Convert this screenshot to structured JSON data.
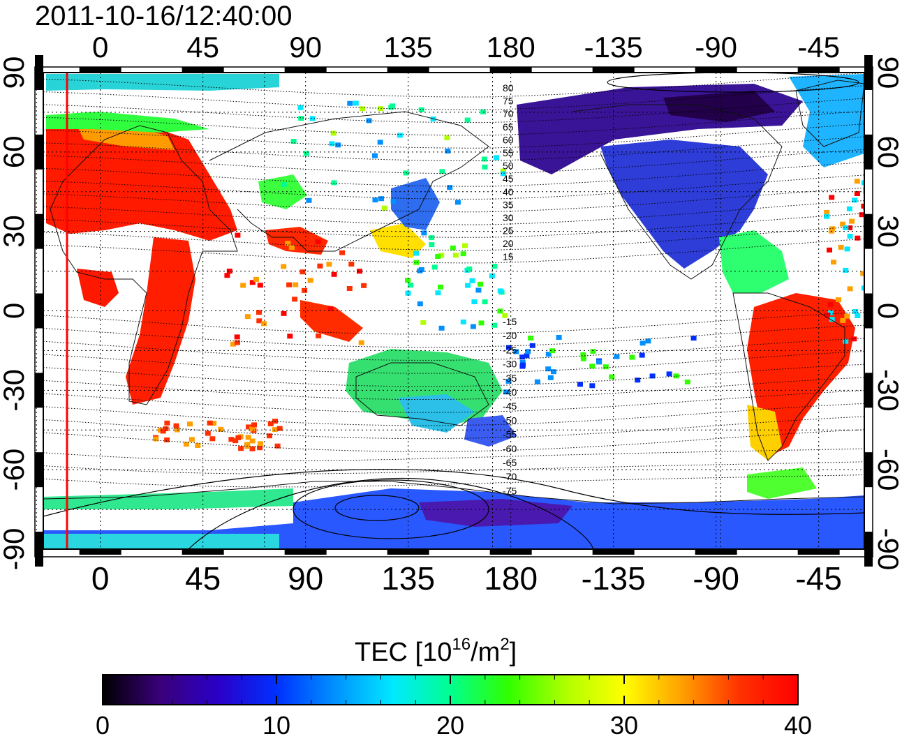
{
  "timestamp": "2011-10-16/12:40:00",
  "lon_ticks": [
    "0",
    "45",
    "90",
    "135",
    "180",
    "-135",
    "-90",
    "-45"
  ],
  "lat_ticks": [
    "90",
    "60",
    "30",
    "0",
    "-30",
    "-60",
    "-90"
  ],
  "contour_labels_north": [
    "80",
    "75",
    "70",
    "65",
    "60",
    "55",
    "50",
    "45",
    "40",
    "35",
    "30",
    "25",
    "20",
    "15"
  ],
  "contour_labels_south": [
    "-15",
    "-20",
    "-25",
    "-30",
    "-35",
    "-40",
    "-45",
    "-50",
    "-55",
    "-60",
    "-65",
    "-70",
    "-75"
  ],
  "colorbar": {
    "title_main": "TEC  [10",
    "title_sup1": "16",
    "title_mid": "/m",
    "title_sup2": "2",
    "title_end": "]",
    "tick_labels": [
      "0",
      "10",
      "20",
      "30",
      "40"
    ],
    "min": 0,
    "max": 40,
    "colors": [
      "#000000",
      "#3a007a",
      "#2a00c8",
      "#0030ff",
      "#0090ff",
      "#00e8ff",
      "#00ff90",
      "#30ff00",
      "#b0ff00",
      "#ffff00",
      "#ffa000",
      "#ff3000",
      "#ff0000"
    ]
  },
  "map": {
    "lon_range": [
      -25,
      335
    ],
    "lat_range": [
      -90,
      90
    ],
    "grid": true,
    "tec_regions": [
      {
        "name": "europe-africa-high",
        "color": "#ff1a00"
      },
      {
        "name": "south-america-high",
        "color": "#ff2000"
      },
      {
        "name": "north-america-low",
        "color": "#2e3dd8"
      },
      {
        "name": "arctic-low",
        "color": "#3b0f8a"
      },
      {
        "name": "australia-mid",
        "color": "#30e060"
      },
      {
        "name": "antarctic-low",
        "color": "#2a4cff"
      }
    ],
    "terminator_color": "#ff0000"
  }
}
